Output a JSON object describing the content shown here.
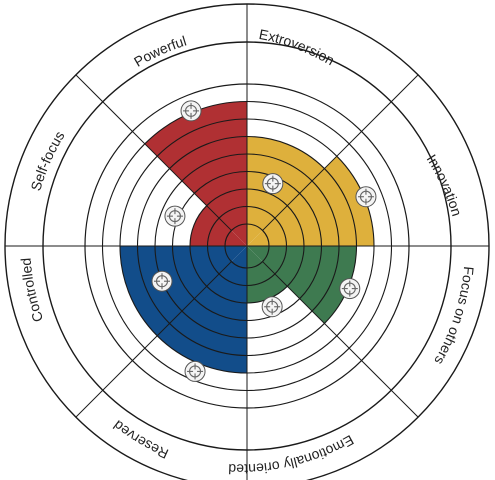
{
  "chart_data": {
    "type": "radial-quadrant-wheel",
    "segments": [
      {
        "label": "Extroversion"
      },
      {
        "label": "Innovation"
      },
      {
        "label": "Focus on others"
      },
      {
        "label": "Emotionally oriented"
      },
      {
        "label": "Reserved"
      },
      {
        "label": "Controlled"
      },
      {
        "label": "Self-focus"
      },
      {
        "label": "Powerful"
      }
    ],
    "rings": 8,
    "quadrants": [
      {
        "name": "red",
        "color": "#b03033",
        "segments": [
          {
            "segment": "Self-focus",
            "value": 2
          },
          {
            "segment": "Powerful",
            "value": 7
          }
        ]
      },
      {
        "name": "yellow",
        "color": "#deb03c",
        "segments": [
          {
            "segment": "Extroversion",
            "value": 5
          },
          {
            "segment": "Innovation",
            "value": 6
          }
        ]
      },
      {
        "name": "green",
        "color": "#3e7a50",
        "segments": [
          {
            "segment": "Focus on others",
            "value": 5
          },
          {
            "segment": "Emotionally oriented",
            "value": 2
          }
        ]
      },
      {
        "name": "blue",
        "color": "#124d8a",
        "segments": [
          {
            "segment": "Reserved",
            "value": 6
          },
          {
            "segment": "Controlled",
            "value": 6
          }
        ]
      }
    ],
    "markers": [
      {
        "segment": "Powerful",
        "value": 7.1
      },
      {
        "segment": "Self-focus",
        "value": 3.2
      },
      {
        "segment": "Extroversion",
        "value": 2.6
      },
      {
        "segment": "Innovation",
        "value": 6.1
      },
      {
        "segment": "Focus on others",
        "value": 5.1
      },
      {
        "segment": "Emotionally oriented",
        "value": 2.5
      },
      {
        "segment": "Reserved",
        "value": 6.5
      },
      {
        "segment": "Controlled",
        "value": 4.0
      }
    ]
  }
}
